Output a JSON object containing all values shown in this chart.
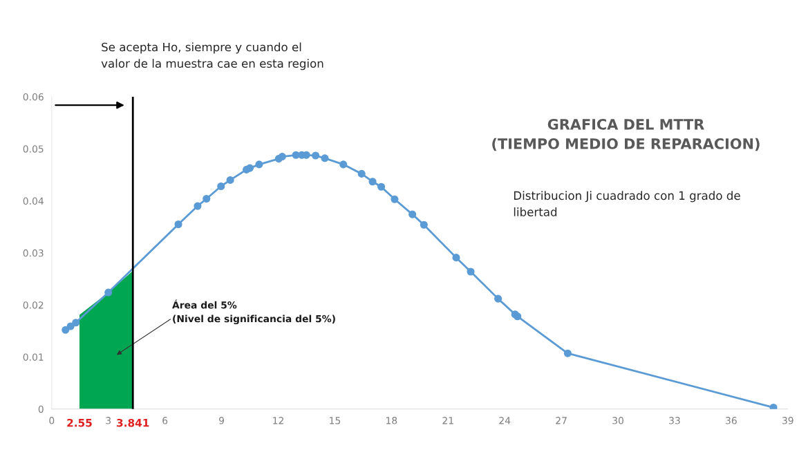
{
  "chart_data": {
    "type": "line",
    "title": "GRAFICA DEL MTTR\n(TIEMPO MEDIO DE REPARACION)",
    "series": [
      {
        "type": "area",
        "color": "#00a651",
        "x": [
          1.47,
          3.0,
          4.28
        ],
        "values": [
          0.0181,
          0.0224,
          0.0265
        ]
      },
      {
        "color": "#5b9bd5",
        "marker": "circle",
        "x": [
          0.73,
          1.0,
          1.28,
          3.0,
          6.71,
          7.73,
          8.2,
          8.97,
          9.46,
          10.32,
          10.5,
          10.99,
          12.03,
          12.21,
          12.94,
          13.25,
          13.49,
          13.98,
          14.47,
          15.45,
          16.42,
          17.0,
          17.46,
          18.17,
          19.11,
          19.72,
          21.43,
          22.2,
          23.65,
          24.55,
          24.68,
          27.34,
          38.24
        ],
        "values": [
          0.0152,
          0.0159,
          0.0166,
          0.0224,
          0.0355,
          0.039,
          0.0404,
          0.0428,
          0.044,
          0.046,
          0.0463,
          0.047,
          0.0481,
          0.0485,
          0.0488,
          0.0488,
          0.0488,
          0.0487,
          0.0482,
          0.047,
          0.0452,
          0.0437,
          0.0427,
          0.0403,
          0.0374,
          0.0354,
          0.0291,
          0.0264,
          0.0212,
          0.0182,
          0.0178,
          0.0107,
          0.0003
        ]
      }
    ],
    "xlim": [
      0,
      39
    ],
    "xticks": [
      0,
      3,
      6,
      9,
      12,
      15,
      18,
      21,
      24,
      27,
      30,
      33,
      36,
      39
    ],
    "ylim": [
      0,
      0.06
    ],
    "yticks": [
      {
        "value": 0,
        "label": "0"
      },
      {
        "value": 0.01,
        "label": "0.01"
      },
      {
        "value": 0.02,
        "label": "0.02"
      },
      {
        "value": 0.03,
        "label": "0.03"
      },
      {
        "value": 0.04,
        "label": "0.04"
      },
      {
        "value": 0.05,
        "label": "0.05"
      },
      {
        "value": 0.06,
        "label": "0.06"
      }
    ],
    "ref_lines": [
      {
        "axis": "x",
        "value": 4.3,
        "color": "#000000"
      }
    ],
    "grid": false,
    "legend": false,
    "annotations": [
      "Se acepta Ho, siempre y cuando el\nvalor de la muestra cae en esta region",
      "Distribucion Ji cuadrado con 1 grado de\nlibertad",
      "Área del 5%\n(Nivel de significancia del 5%)",
      {
        "text": "2.55",
        "x": 1.47,
        "y": 0
      },
      {
        "text": "3.841",
        "x": 4.3,
        "y": 0
      }
    ]
  }
}
